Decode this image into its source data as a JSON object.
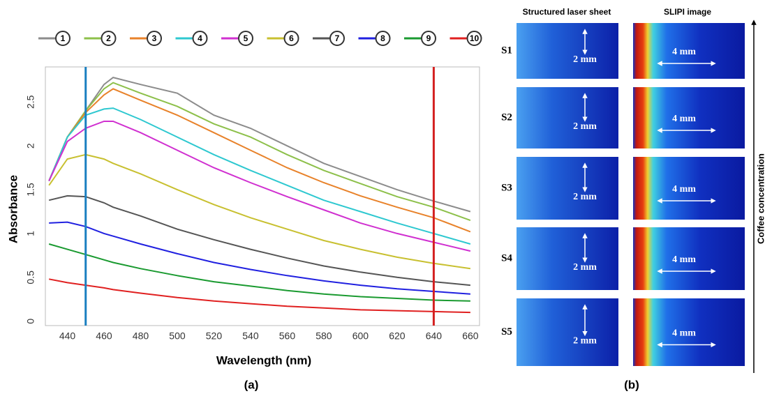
{
  "chart_data": {
    "type": "line",
    "xlabel": "Wavelength (nm)",
    "ylabel": "Absorbance",
    "caption": "(a)",
    "x": [
      430,
      440,
      450,
      460,
      465,
      480,
      500,
      520,
      540,
      560,
      580,
      600,
      620,
      640,
      660
    ],
    "xlim": [
      428,
      665
    ],
    "xticks": [
      440,
      460,
      480,
      500,
      520,
      540,
      560,
      580,
      600,
      620,
      640,
      660
    ],
    "ylim": [
      -0.05,
      2.9
    ],
    "yticks": [
      0,
      0.5,
      1,
      1.5,
      2,
      2.5
    ],
    "grid": false,
    "vlines": [
      {
        "x": 450,
        "color": "#1a7fc0"
      },
      {
        "x": 640,
        "color": "#d42020"
      }
    ],
    "series": [
      {
        "name": "1",
        "color": "#8c8c8c",
        "values": [
          1.6,
          2.1,
          2.4,
          2.7,
          2.78,
          2.7,
          2.6,
          2.35,
          2.2,
          2.0,
          1.8,
          1.65,
          1.5,
          1.37,
          1.25
        ]
      },
      {
        "name": "2",
        "color": "#8dc04a",
        "values": [
          1.6,
          2.1,
          2.4,
          2.65,
          2.72,
          2.6,
          2.45,
          2.25,
          2.1,
          1.9,
          1.72,
          1.57,
          1.42,
          1.3,
          1.15
        ]
      },
      {
        "name": "3",
        "color": "#e8822a",
        "values": [
          1.6,
          2.1,
          2.38,
          2.58,
          2.65,
          2.52,
          2.35,
          2.15,
          1.95,
          1.75,
          1.58,
          1.43,
          1.3,
          1.18,
          1.02
        ]
      },
      {
        "name": "4",
        "color": "#2ec8d0",
        "values": [
          1.6,
          2.1,
          2.35,
          2.42,
          2.43,
          2.3,
          2.1,
          1.9,
          1.72,
          1.55,
          1.38,
          1.25,
          1.12,
          1.0,
          0.88
        ]
      },
      {
        "name": "5",
        "color": "#d030d0",
        "values": [
          1.6,
          2.05,
          2.2,
          2.28,
          2.28,
          2.15,
          1.95,
          1.75,
          1.58,
          1.42,
          1.27,
          1.12,
          1.0,
          0.9,
          0.8
        ]
      },
      {
        "name": "6",
        "color": "#c8c030",
        "values": [
          1.55,
          1.85,
          1.9,
          1.85,
          1.8,
          1.68,
          1.5,
          1.33,
          1.18,
          1.05,
          0.92,
          0.82,
          0.73,
          0.66,
          0.6
        ]
      },
      {
        "name": "7",
        "color": "#555555",
        "values": [
          1.38,
          1.43,
          1.42,
          1.35,
          1.3,
          1.2,
          1.05,
          0.93,
          0.82,
          0.72,
          0.63,
          0.56,
          0.5,
          0.45,
          0.41
        ]
      },
      {
        "name": "8",
        "color": "#2020e0",
        "values": [
          1.12,
          1.13,
          1.08,
          1.0,
          0.97,
          0.88,
          0.77,
          0.67,
          0.59,
          0.52,
          0.46,
          0.41,
          0.37,
          0.34,
          0.31
        ]
      },
      {
        "name": "9",
        "color": "#1a9a30",
        "values": [
          0.88,
          0.82,
          0.76,
          0.7,
          0.67,
          0.6,
          0.52,
          0.45,
          0.4,
          0.35,
          0.31,
          0.28,
          0.26,
          0.24,
          0.23
        ]
      },
      {
        "name": "10",
        "color": "#e02020",
        "values": [
          0.48,
          0.44,
          0.41,
          0.38,
          0.36,
          0.32,
          0.27,
          0.23,
          0.2,
          0.17,
          0.15,
          0.13,
          0.12,
          0.11,
          0.1
        ]
      }
    ]
  },
  "panel_b": {
    "caption": "(b)",
    "column_titles": [
      "Structured laser sheet",
      "SLIPI image"
    ],
    "rows": [
      "S1",
      "S2",
      "S3",
      "S4",
      "S5"
    ],
    "scale_left": "2 mm",
    "scale_right": "4 mm",
    "axis_label": "Coffee concentration"
  }
}
